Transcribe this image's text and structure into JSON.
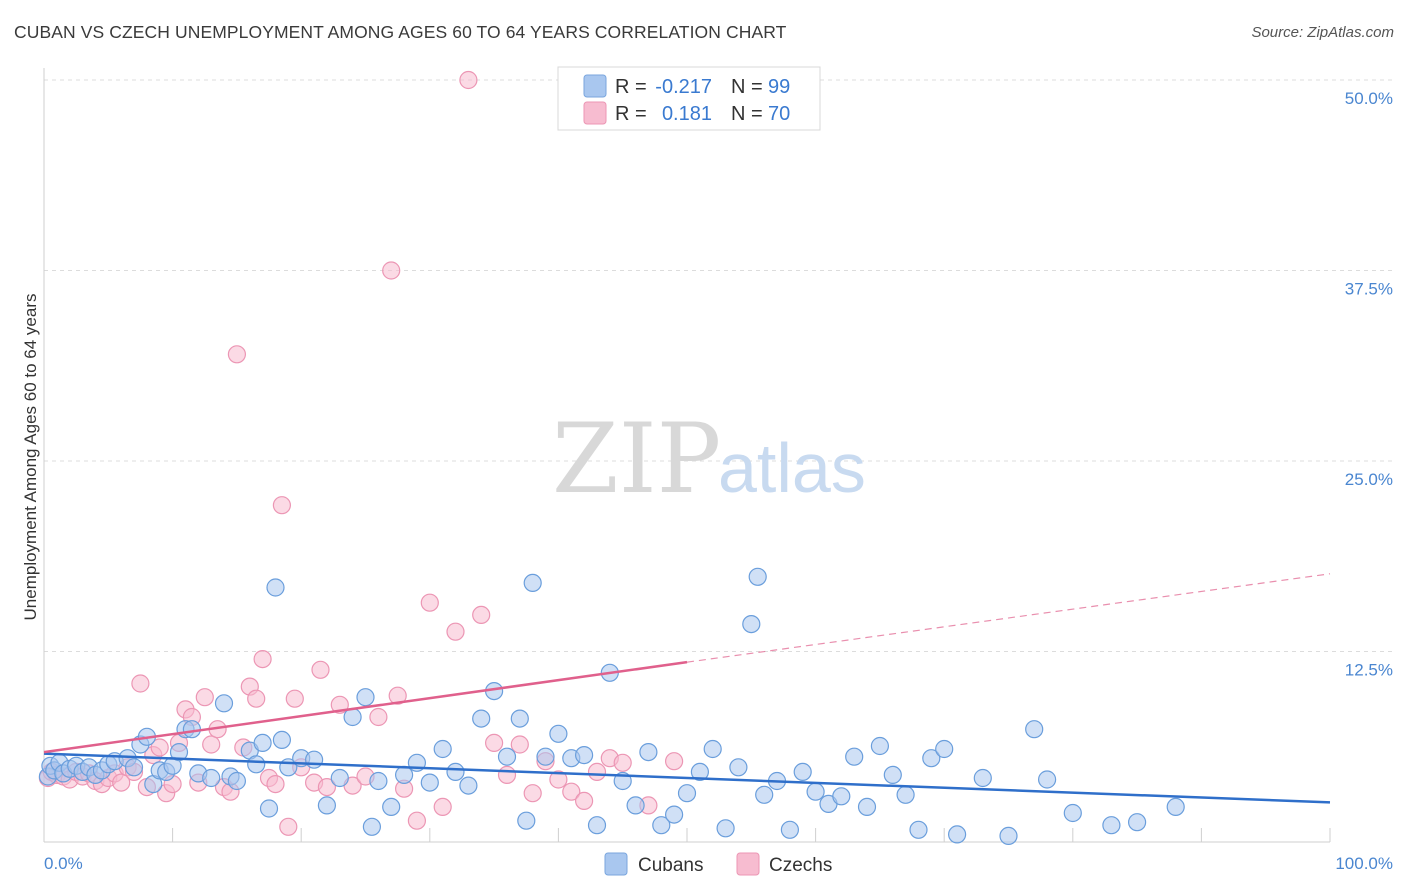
{
  "header": {
    "title": "CUBAN VS CZECH UNEMPLOYMENT AMONG AGES 60 TO 64 YEARS CORRELATION CHART",
    "source": "Source: ZipAtlas.com"
  },
  "watermark": {
    "zip": "ZIP",
    "atlas": "atlas"
  },
  "legend": {
    "rows": [
      {
        "r_label": "R =",
        "r_value": "-0.217",
        "n_label": "N =",
        "n_value": "99",
        "color": "#a9c7ef",
        "stroke": "#7aa6de"
      },
      {
        "r_label": "R =",
        "r_value": "0.181",
        "n_label": "N =",
        "n_value": "70",
        "color": "#f7bcd0",
        "stroke": "#ec96b4"
      }
    ]
  },
  "bottom_legend": {
    "cubans": "Cubans",
    "czechs": "Czechs"
  },
  "chart_data": {
    "type": "scatter",
    "title": "CUBAN VS CZECH UNEMPLOYMENT AMONG AGES 60 TO 64 YEARS CORRELATION CHART",
    "xlabel": "",
    "ylabel": "Unemployment Among Ages 60 to 64 years",
    "xlim": [
      0,
      100
    ],
    "ylim": [
      0,
      52
    ],
    "x_tick_labels": [
      "0.0%",
      "100.0%"
    ],
    "y_ticks": [
      12.5,
      25.0,
      37.5,
      50.0
    ],
    "y_tick_labels": [
      "12.5%",
      "25.0%",
      "37.5%",
      "50.0%"
    ],
    "grid": true,
    "series": [
      {
        "name": "Cubans",
        "color": "#a9c7ef",
        "stroke": "#6a9edc",
        "trend": {
          "x0": 0,
          "y0": 5.8,
          "x1": 100,
          "y1": 2.6,
          "color": "#2f6fca"
        },
        "points": [
          [
            0.3,
            4.3
          ],
          [
            0.5,
            5.0
          ],
          [
            0.8,
            4.7
          ],
          [
            1.2,
            5.2
          ],
          [
            1.5,
            4.5
          ],
          [
            2.0,
            4.8
          ],
          [
            2.5,
            5.0
          ],
          [
            3.0,
            4.6
          ],
          [
            3.5,
            4.9
          ],
          [
            4.0,
            4.4
          ],
          [
            4.5,
            4.7
          ],
          [
            5.0,
            5.1
          ],
          [
            5.5,
            5.3
          ],
          [
            6.5,
            5.5
          ],
          [
            7.0,
            4.9
          ],
          [
            7.5,
            6.4
          ],
          [
            8.0,
            6.9
          ],
          [
            8.5,
            3.8
          ],
          [
            9.0,
            4.7
          ],
          [
            9.5,
            4.6
          ],
          [
            10.0,
            5.0
          ],
          [
            10.5,
            5.9
          ],
          [
            11.0,
            7.4
          ],
          [
            11.5,
            7.4
          ],
          [
            12.0,
            4.5
          ],
          [
            13.0,
            4.2
          ],
          [
            14.0,
            9.1
          ],
          [
            14.5,
            4.3
          ],
          [
            15.0,
            4.0
          ],
          [
            16.0,
            6.0
          ],
          [
            16.5,
            5.1
          ],
          [
            17.0,
            6.5
          ],
          [
            17.5,
            2.2
          ],
          [
            18.0,
            16.7
          ],
          [
            18.5,
            6.7
          ],
          [
            19.0,
            4.9
          ],
          [
            20.0,
            5.5
          ],
          [
            21.0,
            5.4
          ],
          [
            22.0,
            2.4
          ],
          [
            23.0,
            4.2
          ],
          [
            24.0,
            8.2
          ],
          [
            25.0,
            9.5
          ],
          [
            25.5,
            1.0
          ],
          [
            26.0,
            4.0
          ],
          [
            27.0,
            2.3
          ],
          [
            28.0,
            4.4
          ],
          [
            29.0,
            5.2
          ],
          [
            30.0,
            3.9
          ],
          [
            31.0,
            6.1
          ],
          [
            32.0,
            4.6
          ],
          [
            33.0,
            3.7
          ],
          [
            34.0,
            8.1
          ],
          [
            35.0,
            9.9
          ],
          [
            36.0,
            5.6
          ],
          [
            37.0,
            8.1
          ],
          [
            37.5,
            1.4
          ],
          [
            38.0,
            17.0
          ],
          [
            39.0,
            5.6
          ],
          [
            40.0,
            7.1
          ],
          [
            41.0,
            5.5
          ],
          [
            42.0,
            5.7
          ],
          [
            43.0,
            1.1
          ],
          [
            44.0,
            11.1
          ],
          [
            45.0,
            4.0
          ],
          [
            46.0,
            2.4
          ],
          [
            47.0,
            5.9
          ],
          [
            48.0,
            1.1
          ],
          [
            49.0,
            1.8
          ],
          [
            50.0,
            3.2
          ],
          [
            51.0,
            4.6
          ],
          [
            52.0,
            6.1
          ],
          [
            53.0,
            0.9
          ],
          [
            54.0,
            4.9
          ],
          [
            55.0,
            14.3
          ],
          [
            55.5,
            17.4
          ],
          [
            56.0,
            3.1
          ],
          [
            57.0,
            4.0
          ],
          [
            58.0,
            0.8
          ],
          [
            59.0,
            4.6
          ],
          [
            60.0,
            3.3
          ],
          [
            61.0,
            2.5
          ],
          [
            62.0,
            3.0
          ],
          [
            63.0,
            5.6
          ],
          [
            64.0,
            2.3
          ],
          [
            65.0,
            6.3
          ],
          [
            66.0,
            4.4
          ],
          [
            67.0,
            3.1
          ],
          [
            68.0,
            0.8
          ],
          [
            69.0,
            5.5
          ],
          [
            70.0,
            6.1
          ],
          [
            71.0,
            0.5
          ],
          [
            73.0,
            4.2
          ],
          [
            75.0,
            0.4
          ],
          [
            77.0,
            7.4
          ],
          [
            78.0,
            4.1
          ],
          [
            80.0,
            1.9
          ],
          [
            83.0,
            1.1
          ],
          [
            85.0,
            1.3
          ],
          [
            88.0,
            2.3
          ]
        ]
      },
      {
        "name": "Czechs",
        "color": "#f7bcd0",
        "stroke": "#ec96b4",
        "trend": {
          "x0": 0,
          "y0": 5.9,
          "x1": 50,
          "y1": 11.8,
          "color": "#e0608c",
          "ext_x1": 100,
          "ext_y1": 17.6
        },
        "points": [
          [
            0.3,
            4.2
          ],
          [
            0.6,
            4.6
          ],
          [
            1.0,
            4.4
          ],
          [
            1.5,
            4.3
          ],
          [
            2.0,
            4.1
          ],
          [
            2.5,
            4.6
          ],
          [
            3.0,
            4.3
          ],
          [
            3.5,
            4.5
          ],
          [
            4.0,
            4.0
          ],
          [
            4.5,
            3.8
          ],
          [
            5.0,
            4.2
          ],
          [
            5.5,
            4.5
          ],
          [
            6.0,
            3.9
          ],
          [
            6.5,
            4.9
          ],
          [
            7.0,
            4.6
          ],
          [
            7.5,
            10.4
          ],
          [
            8.0,
            3.6
          ],
          [
            8.5,
            5.7
          ],
          [
            9.0,
            6.2
          ],
          [
            9.5,
            3.2
          ],
          [
            10.0,
            3.8
          ],
          [
            10.5,
            6.5
          ],
          [
            11.0,
            8.7
          ],
          [
            11.5,
            8.2
          ],
          [
            12.0,
            3.9
          ],
          [
            12.5,
            9.5
          ],
          [
            13.0,
            6.4
          ],
          [
            13.5,
            7.4
          ],
          [
            14.0,
            3.6
          ],
          [
            14.5,
            3.3
          ],
          [
            15.0,
            32.0
          ],
          [
            15.5,
            6.2
          ],
          [
            16.0,
            10.2
          ],
          [
            16.5,
            9.4
          ],
          [
            17.0,
            12.0
          ],
          [
            17.5,
            4.2
          ],
          [
            18.0,
            3.8
          ],
          [
            18.5,
            22.1
          ],
          [
            19.0,
            1.0
          ],
          [
            19.5,
            9.4
          ],
          [
            20.0,
            4.9
          ],
          [
            21.0,
            3.9
          ],
          [
            21.5,
            11.3
          ],
          [
            22.0,
            3.6
          ],
          [
            23.0,
            9.0
          ],
          [
            24.0,
            3.7
          ],
          [
            25.0,
            4.3
          ],
          [
            26.0,
            8.2
          ],
          [
            27.0,
            37.5
          ],
          [
            27.5,
            9.6
          ],
          [
            28.0,
            3.5
          ],
          [
            29.0,
            1.4
          ],
          [
            30.0,
            15.7
          ],
          [
            31.0,
            2.3
          ],
          [
            32.0,
            13.8
          ],
          [
            33.0,
            50.0
          ],
          [
            34.0,
            14.9
          ],
          [
            35.0,
            6.5
          ],
          [
            36.0,
            4.4
          ],
          [
            37.0,
            6.4
          ],
          [
            38.0,
            3.2
          ],
          [
            39.0,
            5.3
          ],
          [
            40.0,
            4.1
          ],
          [
            41.0,
            3.3
          ],
          [
            42.0,
            2.7
          ],
          [
            43.0,
            4.6
          ],
          [
            44.0,
            5.5
          ],
          [
            45.0,
            5.2
          ],
          [
            47.0,
            2.4
          ],
          [
            49.0,
            5.3
          ]
        ]
      }
    ]
  }
}
